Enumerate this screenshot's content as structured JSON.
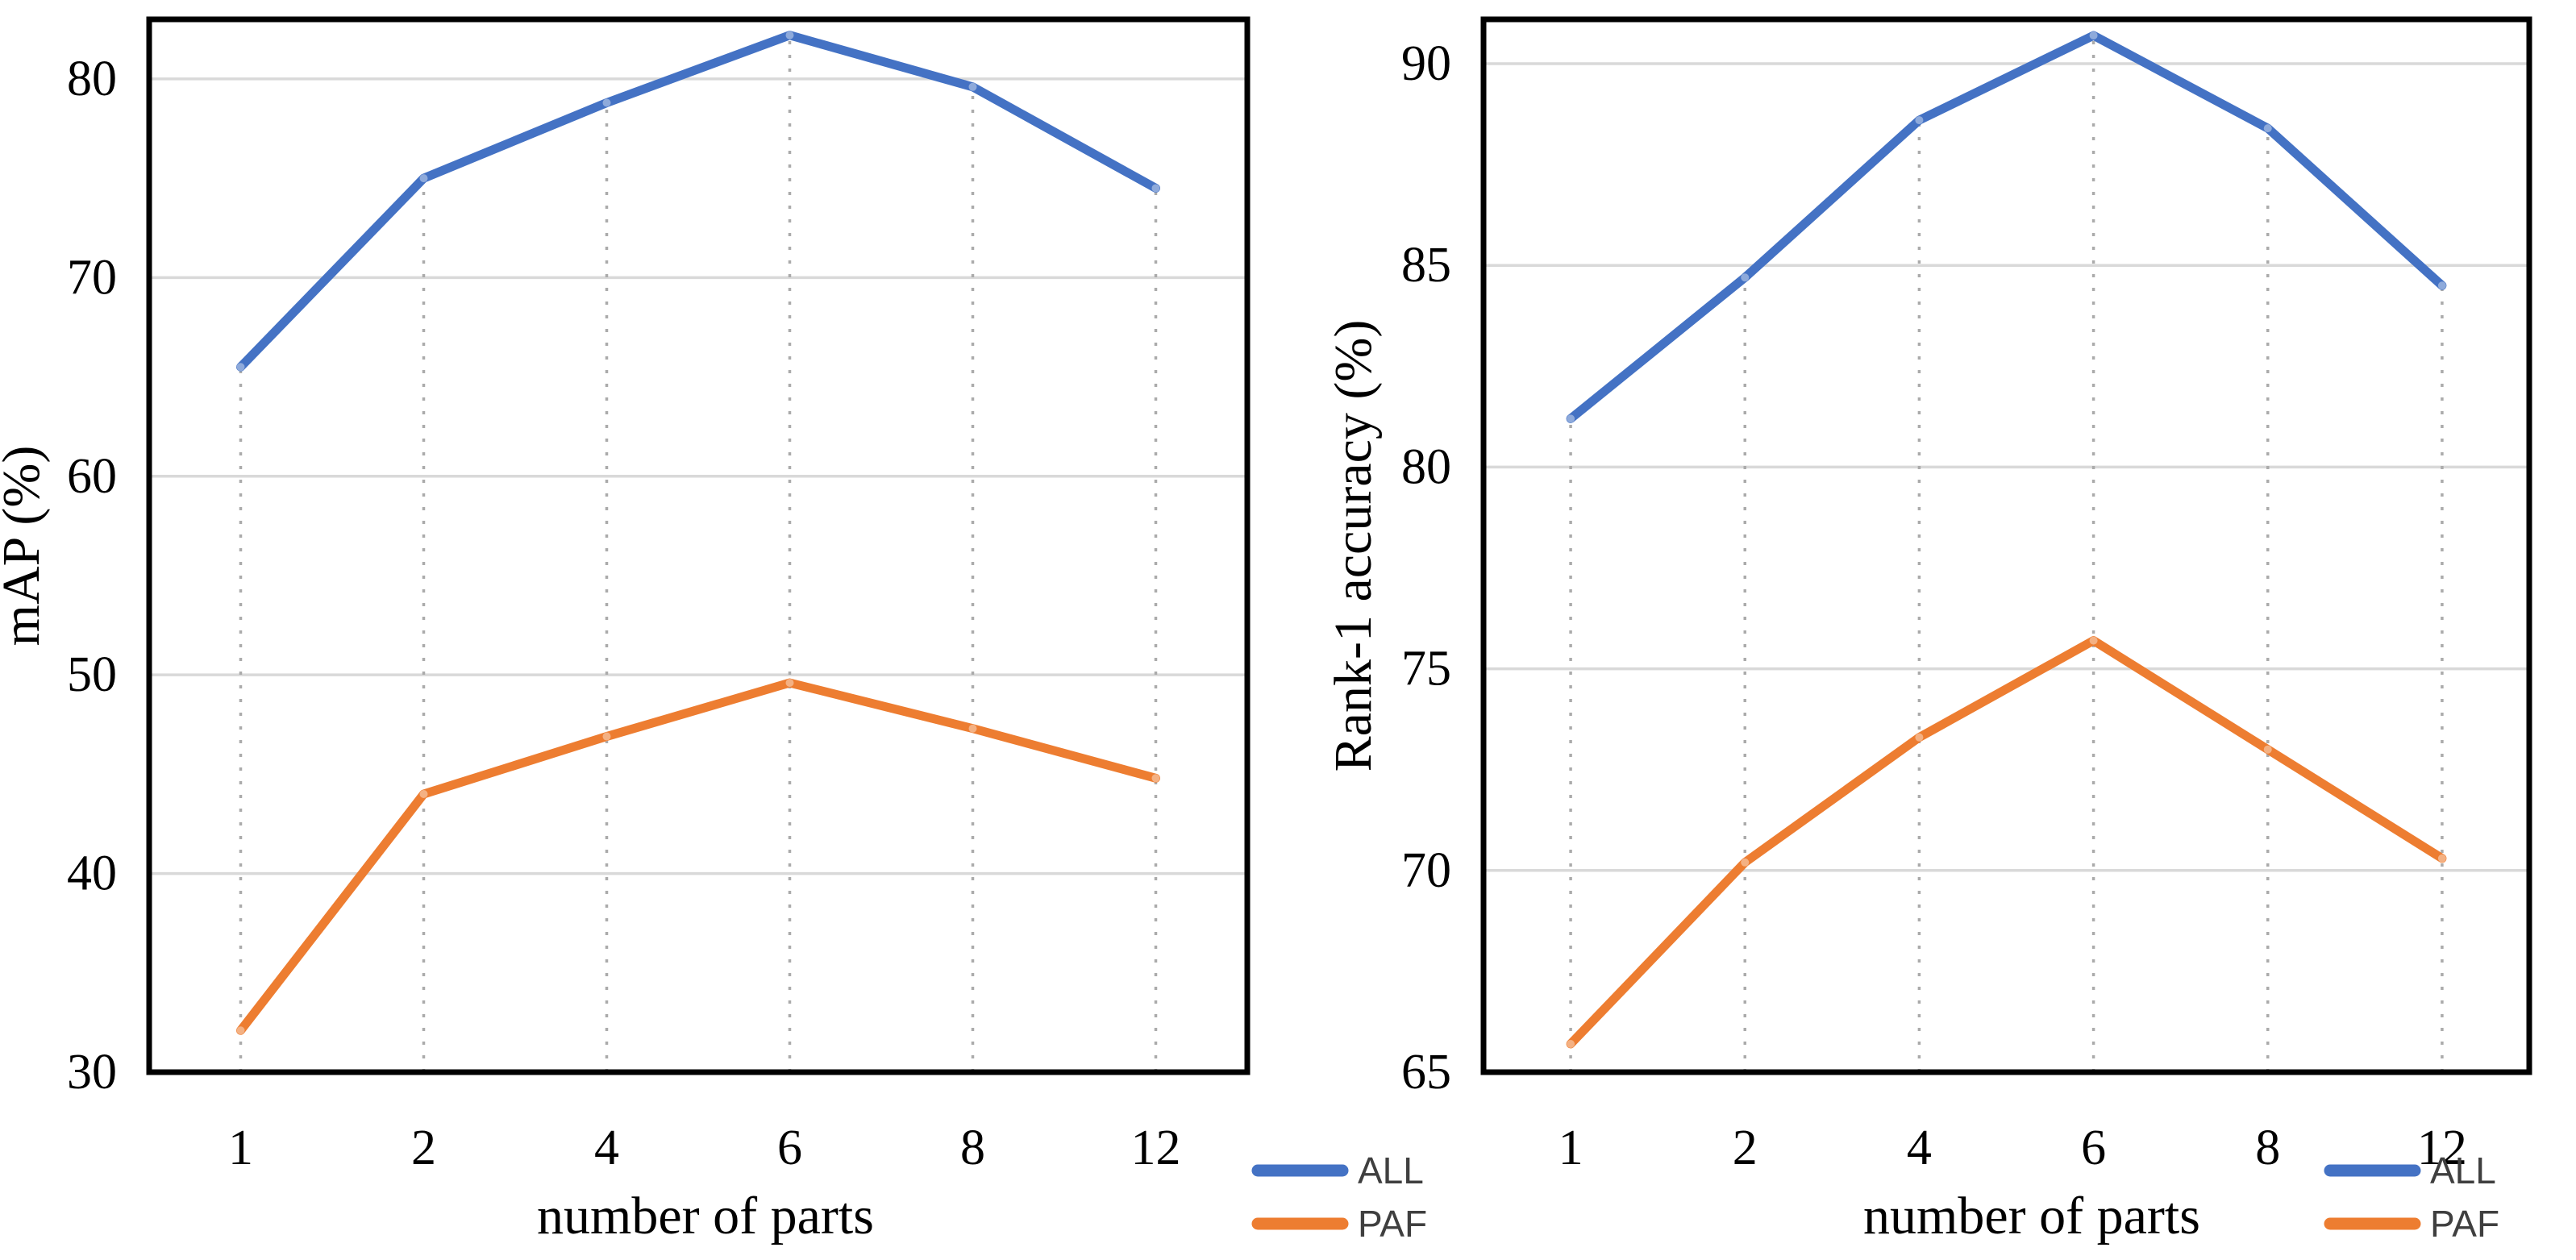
{
  "chart_data": [
    {
      "type": "line",
      "panel": "left",
      "x_categories": [
        "1",
        "2",
        "4",
        "6",
        "8",
        "12"
      ],
      "xlabel": "number of parts",
      "ylabel": "mAP (%)",
      "ylim": [
        30,
        83
      ],
      "yticks": [
        30,
        40,
        50,
        60,
        70,
        80
      ],
      "grid": "horizontal-gridlines-plus-dotted-droplines",
      "legend_position": "below-axis-right",
      "series": [
        {
          "name": "ALL",
          "color": "#4472C4",
          "values": [
            65.5,
            75.0,
            78.8,
            82.2,
            79.6,
            74.5
          ]
        },
        {
          "name": "PAF",
          "color": "#ED7D31",
          "values": [
            32.1,
            44.0,
            46.9,
            49.6,
            47.3,
            44.8
          ]
        }
      ]
    },
    {
      "type": "line",
      "panel": "right",
      "x_categories": [
        "1",
        "2",
        "4",
        "6",
        "8",
        "12"
      ],
      "xlabel": "number of parts",
      "ylabel": "Rank-1 accuracy (%)",
      "ylim": [
        65,
        91.1
      ],
      "yticks": [
        65,
        70,
        75,
        80,
        85,
        90
      ],
      "grid": "horizontal-gridlines-plus-dotted-droplines",
      "legend_position": "below-axis-right",
      "series": [
        {
          "name": "ALL",
          "color": "#4472C4",
          "values": [
            81.2,
            84.7,
            88.6,
            90.7,
            88.4,
            84.5
          ]
        },
        {
          "name": "PAF",
          "color": "#ED7D31",
          "values": [
            65.7,
            70.2,
            73.3,
            75.7,
            73.0,
            70.3
          ]
        }
      ]
    }
  ],
  "colors": {
    "background": "#ffffff",
    "grid": "#D9D9D9",
    "dropline": "#ABABAB",
    "axis_border": "#000000",
    "tick_text": "#000000",
    "legend_text": "#3f3f3f",
    "series_all": "#4472C4",
    "series_paf": "#ED7D31"
  }
}
